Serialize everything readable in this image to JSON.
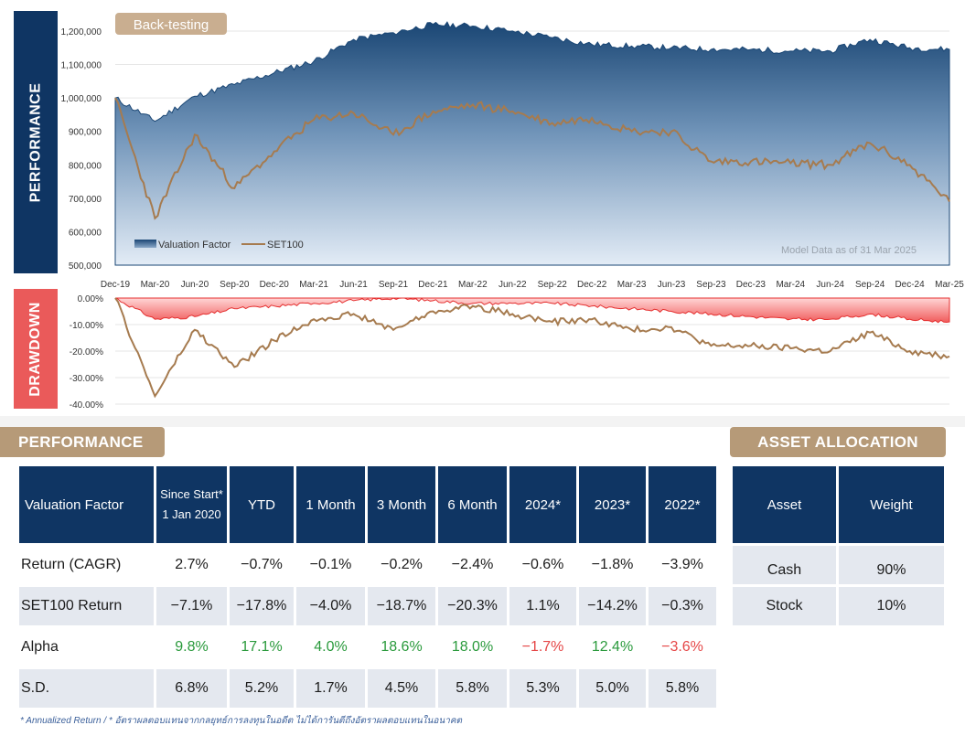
{
  "side_labels": {
    "performance": "PERFORMANCE",
    "drawdown": "DRAWDOWN"
  },
  "chart_data": [
    {
      "type": "area",
      "title": "Back-testing",
      "note": "Model Data as of 31 Mar 2025",
      "x": [
        "Dec-19",
        "Mar-20",
        "Jun-20",
        "Sep-20",
        "Dec-20",
        "Mar-21",
        "Jun-21",
        "Sep-21",
        "Dec-21",
        "Mar-22",
        "Jun-22",
        "Sep-22",
        "Dec-22",
        "Mar-23",
        "Jun-23",
        "Sep-23",
        "Dec-23",
        "Mar-24",
        "Jun-24",
        "Sep-24",
        "Dec-24",
        "Mar-25"
      ],
      "ytick_labels": [
        "500,000",
        "600,000",
        "700,000",
        "800,000",
        "900,000",
        "1,000,000",
        "1,100,000",
        "1,200,000"
      ],
      "ylim": [
        500000,
        1260000
      ],
      "series": [
        {
          "name": "Valuation Factor",
          "style": "area",
          "color": "#1d4a78",
          "values": [
            1000000,
            930000,
            1005000,
            1040000,
            1075000,
            1110000,
            1175000,
            1195000,
            1220000,
            1215000,
            1200000,
            1180000,
            1160000,
            1155000,
            1150000,
            1145000,
            1145000,
            1140000,
            1140000,
            1175000,
            1150000,
            1145000
          ]
        },
        {
          "name": "SET100",
          "style": "line",
          "color": "#a67b4f",
          "values": [
            1000000,
            640000,
            890000,
            730000,
            840000,
            935000,
            955000,
            890000,
            960000,
            980000,
            960000,
            925000,
            940000,
            900000,
            900000,
            810000,
            810000,
            805000,
            800000,
            865000,
            800000,
            690000
          ]
        }
      ],
      "legend": [
        "Valuation Factor",
        "SET100"
      ]
    },
    {
      "type": "area",
      "title": "Drawdown",
      "ytick_labels": [
        "0.00%",
        "-10.00%",
        "-20.00%",
        "-30.00%",
        "-40.00%"
      ],
      "ylim": [
        -40,
        0
      ],
      "series": [
        {
          "name": "Valuation Factor",
          "style": "area",
          "color": "#f05a5a",
          "values": [
            0,
            -8,
            -7,
            -4,
            -3,
            -2,
            -1,
            0,
            -1,
            -2,
            -2,
            -2,
            -3,
            -4,
            -5,
            -6,
            -7,
            -8,
            -8,
            -6,
            -8,
            -9
          ]
        },
        {
          "name": "SET100",
          "style": "line",
          "color": "#a67b4f",
          "values": [
            0,
            -37,
            -12,
            -26,
            -16,
            -8,
            -6,
            -12,
            -5,
            -3,
            -6,
            -9,
            -8,
            -12,
            -11,
            -18,
            -18,
            -19,
            -20,
            -13,
            -20,
            -22
          ]
        }
      ]
    }
  ],
  "performance": {
    "header": "PERFORMANCE",
    "columns": [
      "Valuation Factor",
      "Since Start*",
      "1 Jan 2020",
      "YTD",
      "1 Month",
      "3 Month",
      "6 Month",
      "2024*",
      "2023*",
      "2022*"
    ],
    "rows": [
      {
        "label": "Return (CAGR)",
        "values": [
          "2.7%",
          "−0.7%",
          "−0.1%",
          "−0.2%",
          "−2.4%",
          "−0.6%",
          "−1.8%",
          "−3.9%"
        ]
      },
      {
        "label": "SET100 Return",
        "values": [
          "−7.1%",
          "−17.8%",
          "−4.0%",
          "−18.7%",
          "−20.3%",
          "1.1%",
          "−14.2%",
          "−0.3%"
        ]
      },
      {
        "label": "Alpha",
        "values": [
          "9.8%",
          "17.1%",
          "4.0%",
          "18.6%",
          "18.0%",
          "−1.7%",
          "12.4%",
          "−3.6%"
        ]
      },
      {
        "label": "S.D.",
        "values": [
          "6.8%",
          "5.2%",
          "1.7%",
          "4.5%",
          "5.8%",
          "5.3%",
          "5.0%",
          "5.8%"
        ]
      }
    ],
    "colors": {
      "positive": "#2a9a3c",
      "negative": "#e54646"
    }
  },
  "allocation": {
    "header": "ASSET ALLOCATION",
    "columns": [
      "Asset",
      "Weight"
    ],
    "rows": [
      {
        "asset": "Cash",
        "weight": "90%"
      },
      {
        "asset": "Stock",
        "weight": "10%"
      }
    ]
  },
  "footnote": "* Annualized Return  /  * อัตราผลตอบแทนจากกลยุทธ์การลงทุนในอดีต ไม่ได้การันตีถึงอัตราผลตอบแทนในอนาคต"
}
